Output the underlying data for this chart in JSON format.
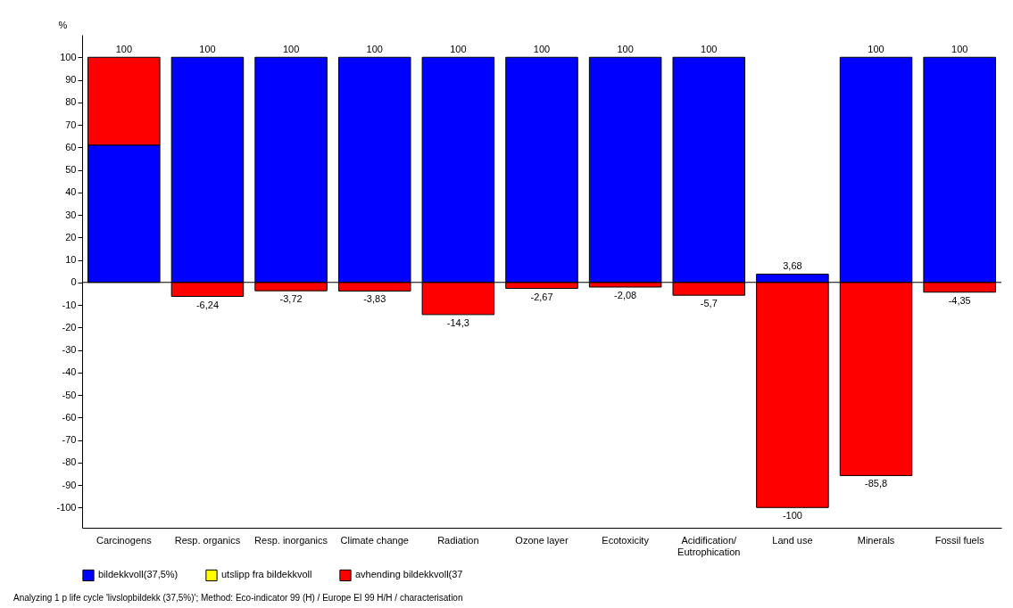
{
  "chart_data": {
    "type": "bar",
    "stacked": true,
    "ylabel": "%",
    "categories": [
      "Carcinogens",
      "Resp. organics",
      "Resp. inorganics",
      "Climate change",
      "Radiation",
      "Ozone layer",
      "Ecotoxicity",
      "Acidification/\nEutrophication",
      "Land use",
      "Minerals",
      "Fossil fuels"
    ],
    "series": [
      {
        "name": "bildekkvoll(37,5%)",
        "color": "#0000ff",
        "values": [
          61,
          100,
          100,
          100,
          100,
          100,
          100,
          100,
          3.68,
          100,
          100
        ],
        "value_labels": [
          null,
          "100",
          "100",
          "100",
          "100",
          "100",
          "100",
          "100",
          "3,68",
          "100",
          "100"
        ]
      },
      {
        "name": "utslipp fra bildekkvoll",
        "color": "#ffff00",
        "values": [
          null,
          null,
          null,
          null,
          null,
          null,
          null,
          null,
          null,
          null,
          null
        ]
      },
      {
        "name": "avhending bildekkvoll(37",
        "color": "#ff0000",
        "values": [
          39,
          -6.24,
          -3.72,
          -3.83,
          -14.3,
          -2.67,
          -2.08,
          -5.7,
          -100,
          -85.8,
          -4.35
        ],
        "value_labels": [
          null,
          "-6,24",
          "-3,72",
          "-3,83",
          "-14,3",
          "-2,67",
          "-2,08",
          "-5,7",
          "-100",
          "-85,8",
          "-4,35"
        ]
      }
    ],
    "ylim": [
      -109,
      110
    ],
    "yticks": [
      -100,
      -90,
      -80,
      -70,
      -60,
      -50,
      -40,
      -30,
      -20,
      -10,
      0,
      10,
      20,
      30,
      40,
      50,
      60,
      70,
      80,
      90,
      100
    ],
    "ref_lines": [
      {
        "axis": "y",
        "value": 0
      }
    ],
    "grid": false,
    "legend": "bottom left",
    "annotations": [
      {
        "text": "100",
        "x": "Carcinogens",
        "y": 100
      },
      "Analyzing 1 p life cycle 'livslopbildekk (37,5%)';  Method: Eco-indicator 99 (H) /  Europe EI 99 H/H / characterisation"
    ]
  }
}
